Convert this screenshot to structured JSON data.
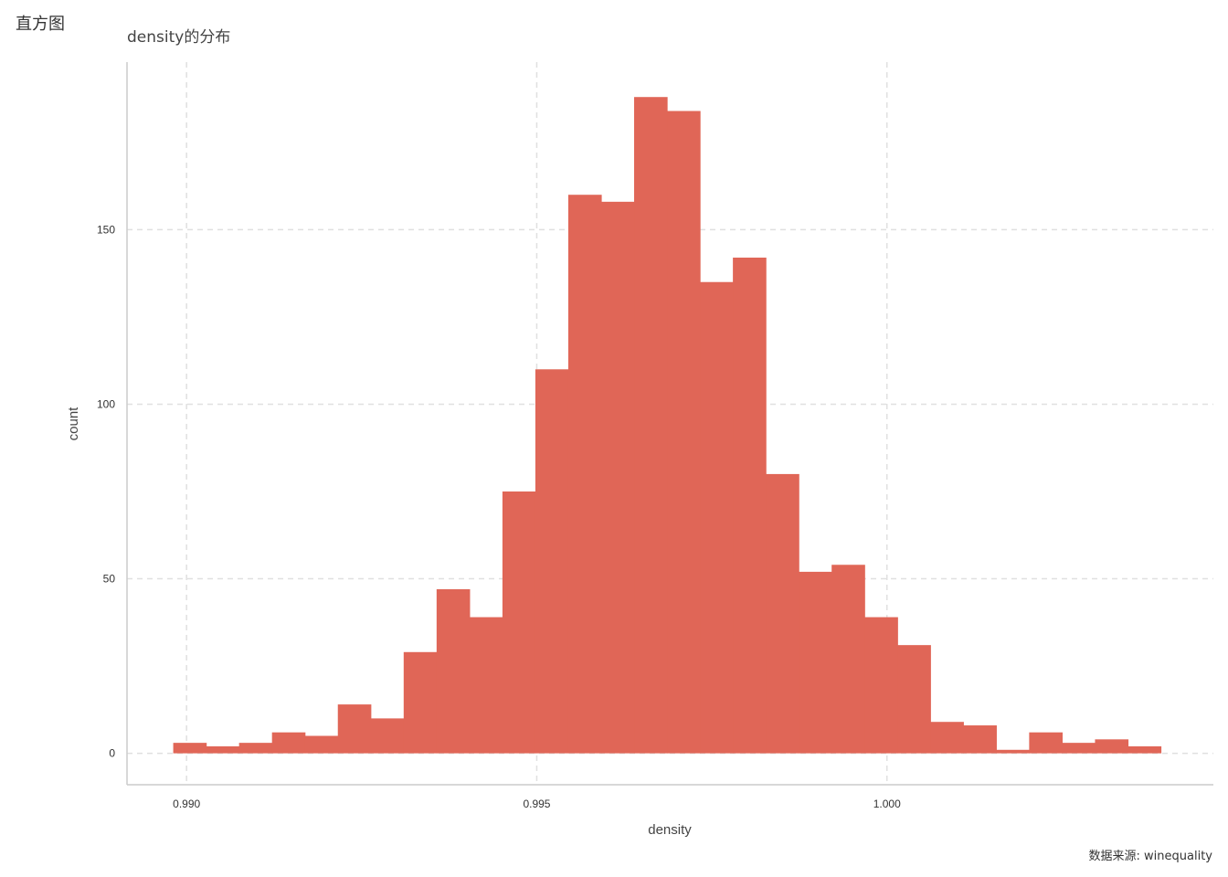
{
  "page": {
    "heading": "直方图"
  },
  "chart_data": {
    "type": "bar",
    "title": "density的分布",
    "xlabel": "density",
    "ylabel": "count",
    "caption": "数据来源: winequality",
    "bar_color": "#E06657",
    "grid_color": "#E0E0E0",
    "axis_color": "#CCCCCC",
    "grid": true,
    "grid_style": "dashed",
    "xlim": [
      0.98915,
      1.00466
    ],
    "ylim": [
      -9,
      198
    ],
    "x_ticks": [
      0.99,
      0.995,
      1.0
    ],
    "x_tick_labels": [
      "0.990",
      "0.995",
      "1.000"
    ],
    "y_ticks": [
      0,
      50,
      100,
      150
    ],
    "y_tick_labels": [
      "0",
      "50",
      "100",
      "150"
    ],
    "bin_start": 0.98981,
    "bin_width": 0.00047,
    "values": [
      3,
      2,
      3,
      6,
      5,
      14,
      10,
      29,
      47,
      39,
      75,
      110,
      160,
      158,
      188,
      184,
      135,
      142,
      80,
      52,
      54,
      39,
      31,
      9,
      8,
      1,
      6,
      3,
      4,
      2
    ]
  }
}
